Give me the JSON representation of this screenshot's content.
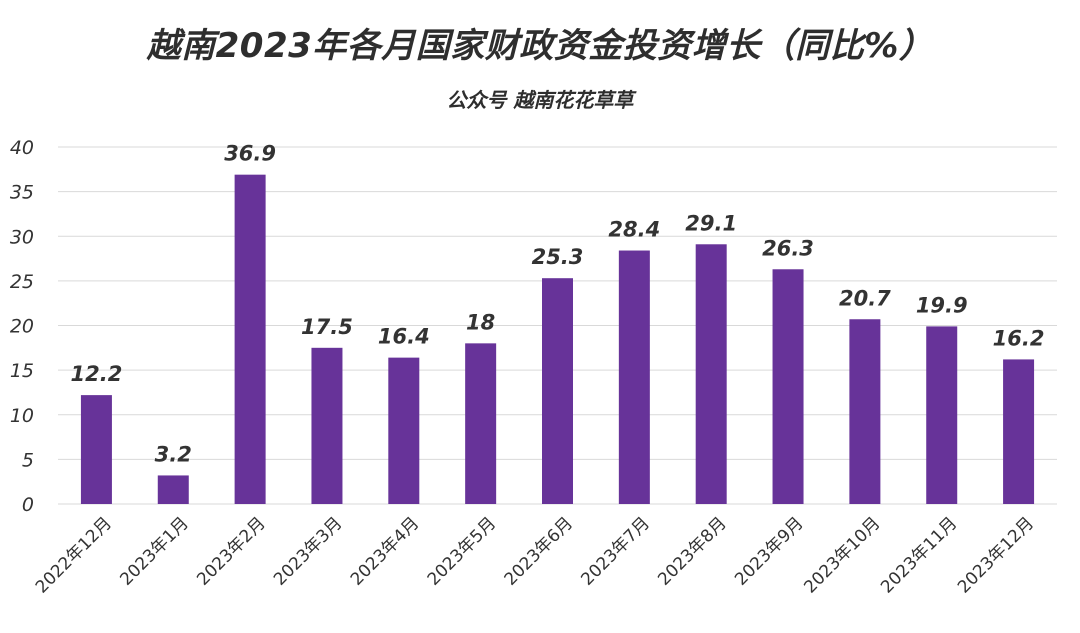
{
  "colors": {
    "bar": "#673399",
    "grid": "#d9d9d9",
    "text": "#333333"
  },
  "chart_data": {
    "type": "bar",
    "title": "越南2023年各月国家财政资金投资增长（同比%）",
    "subtitle": "公众号 越南花花草草",
    "categories": [
      "2022年12月",
      "2023年1月",
      "2023年2月",
      "2023年3月",
      "2023年4月",
      "2023年5月",
      "2023年6月",
      "2023年7月",
      "2023年8月",
      "2023年9月",
      "2023年10月",
      "2023年11月",
      "2023年12月"
    ],
    "values": [
      12.2,
      3.2,
      36.9,
      17.5,
      16.4,
      18,
      25.3,
      28.4,
      29.1,
      26.3,
      20.7,
      19.9,
      16.2
    ],
    "value_labels": [
      "12.2",
      "3.2",
      "36.9",
      "17.5",
      "16.4",
      "18",
      "25.3",
      "28.4",
      "29.1",
      "26.3",
      "20.7",
      "19.9",
      "16.2"
    ],
    "yticks": [
      "0",
      "5",
      "10",
      "15",
      "20",
      "25",
      "30",
      "35",
      "40"
    ],
    "ylim": [
      0,
      40
    ],
    "xlabel": "",
    "ylabel": "",
    "grid": true
  }
}
